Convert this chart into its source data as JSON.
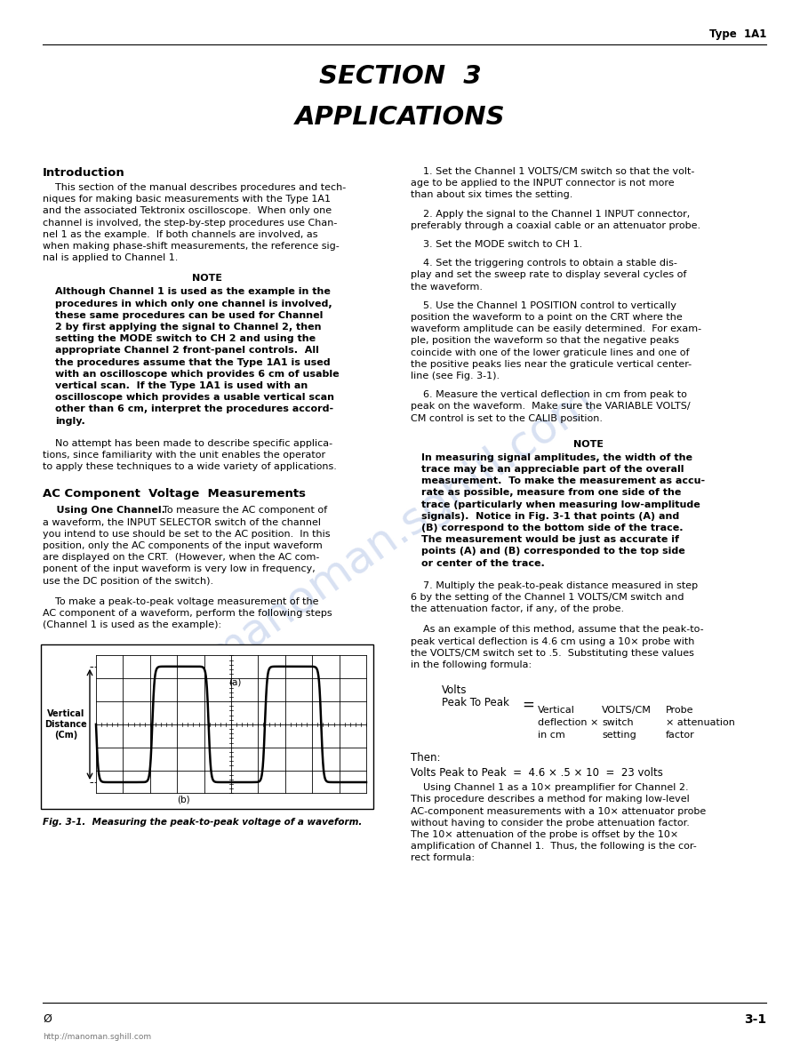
{
  "page_title_line1": "SECTION  3",
  "page_title_line2": "APPLICATIONS",
  "header_right": "Type  1A1",
  "footer_left": "Ø",
  "footer_right": "3-1",
  "footer_url": "http://manoman.sghill.com",
  "bg_color": "#ffffff",
  "text_color": "#000000",
  "watermark_color": "#b8c8e8",
  "watermark_text": "manoman.sghill.com"
}
